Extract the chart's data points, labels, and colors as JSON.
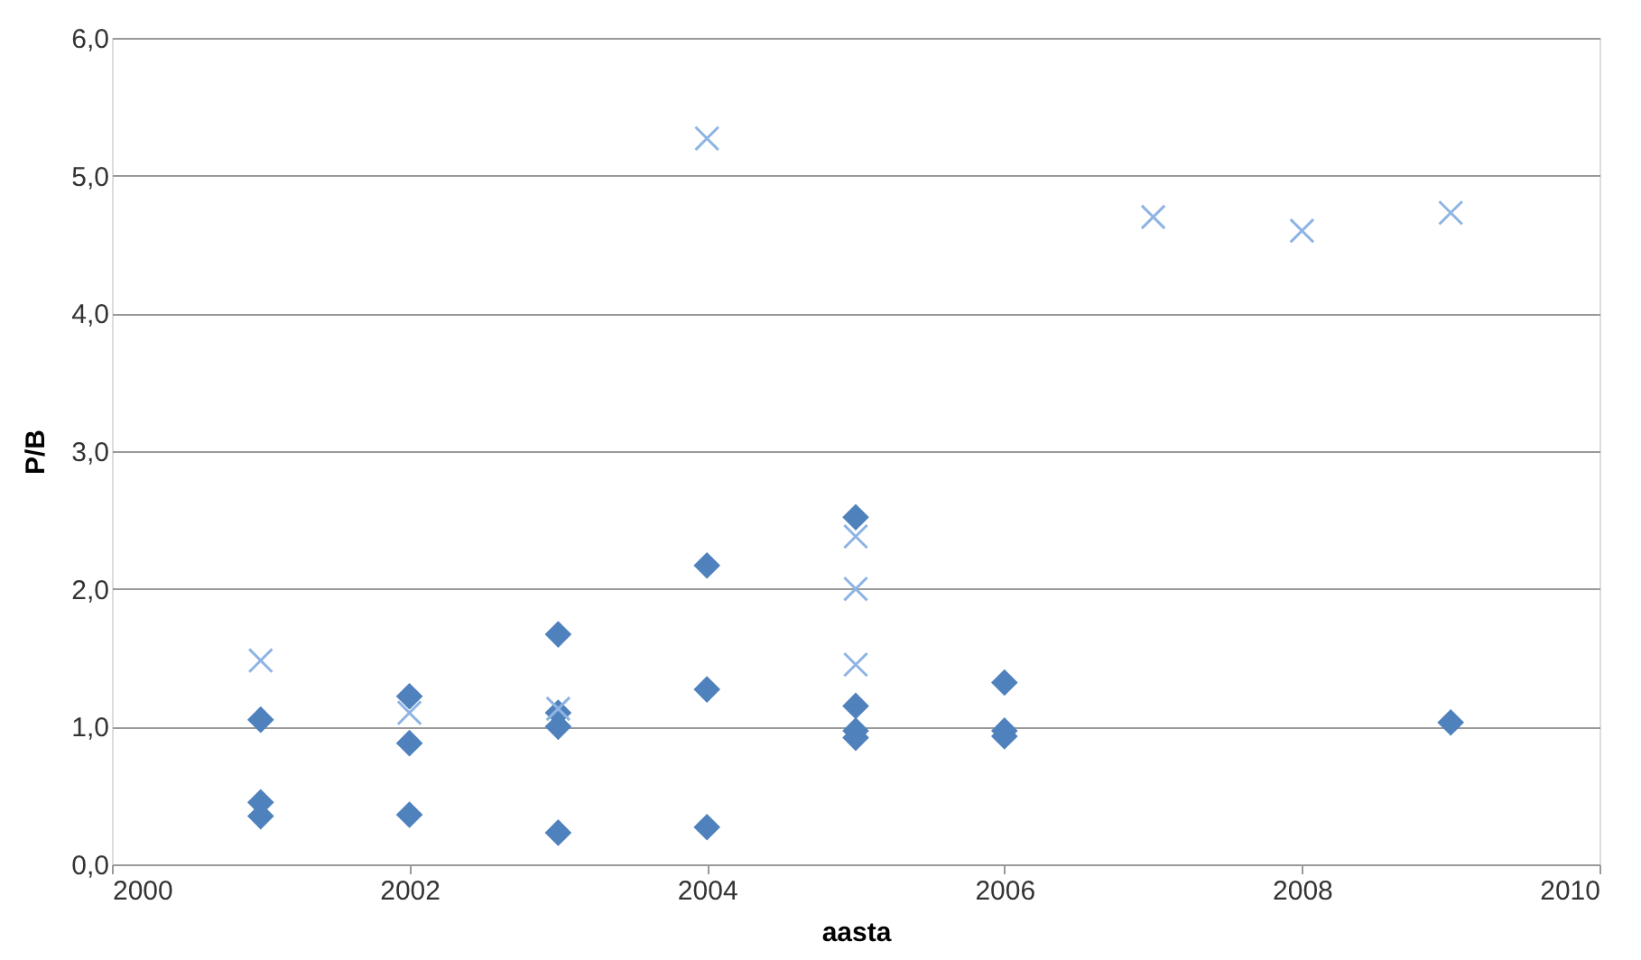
{
  "chart_data": {
    "type": "scatter",
    "xlabel": "aasta",
    "ylabel": "P/B",
    "xlim": [
      2000,
      2010
    ],
    "xticks": [
      2000,
      2002,
      2004,
      2006,
      2008,
      2010
    ],
    "ylim": [
      0,
      6
    ],
    "yticks": [
      {
        "value": 0,
        "label": "0,0"
      },
      {
        "value": 1,
        "label": "1,0"
      },
      {
        "value": 2,
        "label": "2,0"
      },
      {
        "value": 3,
        "label": "3,0"
      },
      {
        "value": 4,
        "label": "4,0"
      },
      {
        "value": 5,
        "label": "5,0"
      },
      {
        "value": 6,
        "label": "6,0"
      }
    ],
    "grid": "y",
    "series": [
      {
        "color": "#4f81bd",
        "marker": "diamond",
        "x": [
          2001,
          2001,
          2001,
          2002,
          2002,
          2002,
          2003,
          2003,
          2003,
          2003,
          2004,
          2004,
          2004,
          2005,
          2005,
          2005,
          2005,
          2006,
          2006,
          2006,
          2009
        ],
        "values": [
          1.05,
          0.45,
          0.35,
          1.22,
          0.88,
          0.36,
          1.67,
          1.1,
          1.0,
          0.23,
          2.17,
          1.27,
          0.27,
          2.52,
          1.15,
          0.97,
          0.92,
          1.32,
          0.97,
          0.93,
          1.03
        ]
      },
      {
        "color": "#8eb4e3",
        "marker": "cross",
        "x": [
          2001,
          2002,
          2003,
          2004,
          2005,
          2005,
          2005,
          2007,
          2008,
          2009
        ],
        "values": [
          1.48,
          1.1,
          1.13,
          5.27,
          2.38,
          2.0,
          1.45,
          4.7,
          4.6,
          4.73
        ]
      }
    ]
  }
}
